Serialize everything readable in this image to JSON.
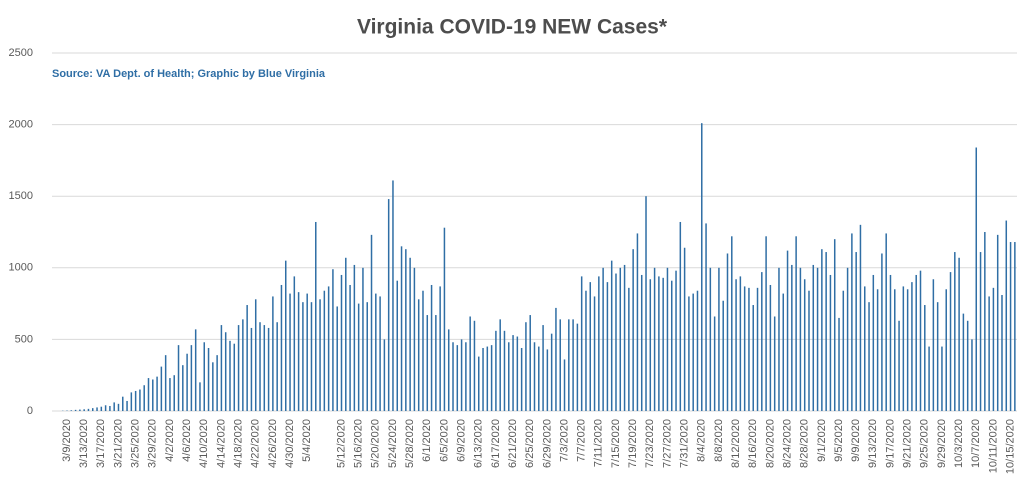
{
  "chart_data": {
    "type": "bar",
    "title": "Virginia COVID-19 NEW Cases*",
    "subtitle": "Source: VA Dept. of Health; Graphic by Blue Virginia",
    "color": "#2f6ea5",
    "grid": true,
    "ylim": [
      0,
      2500
    ],
    "yticks": [
      0,
      500,
      1000,
      1500,
      2000,
      2500
    ],
    "categories": [
      null,
      null,
      null,
      "3/9/2020",
      null,
      null,
      null,
      "3/13/2020",
      null,
      null,
      null,
      "3/17/2020",
      null,
      null,
      null,
      "3/21/2020",
      null,
      null,
      null,
      "3/25/2020",
      null,
      null,
      null,
      "3/29/2020",
      null,
      null,
      null,
      "4/2/2020",
      null,
      null,
      null,
      "4/6/2020",
      null,
      null,
      null,
      "4/10/2020",
      null,
      null,
      null,
      "4/14/2020",
      null,
      null,
      null,
      "4/18/2020",
      null,
      null,
      null,
      "4/22/2020",
      null,
      null,
      null,
      "4/26/2020",
      null,
      null,
      null,
      "4/30/2020",
      null,
      null,
      null,
      "5/4/2020",
      null,
      null,
      null,
      null,
      null,
      null,
      null,
      "5/12/2020",
      null,
      null,
      null,
      "5/16/2020",
      null,
      null,
      null,
      "5/20/2020",
      null,
      null,
      null,
      "5/24/2020",
      null,
      null,
      null,
      "5/28/2020",
      null,
      null,
      null,
      "6/1/2020",
      null,
      null,
      null,
      "6/5/2020",
      null,
      null,
      null,
      "6/9/2020",
      null,
      null,
      null,
      "6/13/2020",
      null,
      null,
      null,
      "6/17/2020",
      null,
      null,
      null,
      "6/21/2020",
      null,
      null,
      null,
      "6/25/2020",
      null,
      null,
      null,
      "6/29/2020",
      null,
      null,
      null,
      "7/3/2020",
      null,
      null,
      null,
      "7/7/2020",
      null,
      null,
      null,
      "7/11/2020",
      null,
      null,
      null,
      "7/15/2020",
      null,
      null,
      null,
      "7/19/2020",
      null,
      null,
      null,
      "7/23/2020",
      null,
      null,
      null,
      "7/27/2020",
      null,
      null,
      null,
      "7/31/2020",
      null,
      null,
      null,
      "8/4/2020",
      null,
      null,
      null,
      "8/8/2020",
      null,
      null,
      null,
      "8/12/2020",
      null,
      null,
      null,
      "8/16/2020",
      null,
      null,
      null,
      "8/20/2020",
      null,
      null,
      null,
      "8/24/2020",
      null,
      null,
      null,
      "8/28/2020",
      null,
      null,
      null,
      "9/1/2020",
      null,
      null,
      null,
      "9/5/2020",
      null,
      null,
      null,
      "9/9/2020",
      null,
      null,
      null,
      "9/13/2020",
      null,
      null,
      null,
      "9/17/2020",
      null,
      null,
      null,
      "9/21/2020",
      null,
      null,
      null,
      "9/25/2020",
      null,
      null,
      null,
      "9/29/2020",
      null,
      null,
      null,
      "10/3/2020",
      null,
      null,
      null,
      "10/7/2020",
      null,
      null,
      null,
      "10/11/2020",
      null,
      null,
      null,
      "10/15/2020",
      null
    ],
    "values": [
      0,
      0,
      2,
      3,
      5,
      8,
      10,
      12,
      15,
      20,
      25,
      30,
      40,
      35,
      60,
      50,
      100,
      70,
      130,
      140,
      150,
      180,
      230,
      220,
      240,
      310,
      390,
      230,
      250,
      460,
      320,
      400,
      460,
      570,
      200,
      480,
      440,
      340,
      390,
      600,
      550,
      490,
      470,
      600,
      640,
      740,
      580,
      780,
      620,
      600,
      580,
      800,
      620,
      880,
      1050,
      820,
      940,
      830,
      760,
      820,
      760,
      1320,
      780,
      840,
      870,
      990,
      730,
      950,
      1070,
      880,
      1020,
      750,
      1000,
      760,
      1230,
      820,
      800,
      500,
      1480,
      1610,
      910,
      1150,
      1130,
      1070,
      1000,
      780,
      840,
      670,
      880,
      670,
      870,
      1280,
      570,
      480,
      460,
      500,
      480,
      660,
      630,
      380,
      440,
      450,
      460,
      560,
      640,
      560,
      480,
      530,
      520,
      440,
      620,
      670,
      480,
      450,
      600,
      430,
      540,
      720,
      640,
      360,
      640,
      640,
      610,
      940,
      840,
      900,
      800,
      940,
      1000,
      900,
      1050,
      960,
      1000,
      1020,
      860,
      1130,
      1240,
      950,
      1500,
      920,
      1000,
      940,
      930,
      1000,
      910,
      980,
      1320,
      1140,
      800,
      820,
      840,
      2010,
      1310,
      1000,
      660,
      1000,
      770,
      1100,
      1220,
      920,
      940,
      870,
      860,
      740,
      860,
      970,
      1220,
      880,
      660,
      1000,
      820,
      1120,
      1020,
      1220,
      1000,
      920,
      840,
      1020,
      1000,
      1130,
      1110,
      950,
      1200,
      650,
      840,
      1000,
      1240,
      1110,
      1300,
      870,
      760,
      950,
      850,
      1100,
      1240,
      950,
      850,
      630,
      870,
      850,
      900,
      950,
      980,
      740,
      450,
      920,
      760,
      450,
      850,
      970,
      1110,
      1070,
      680,
      630,
      500,
      1840,
      1110,
      1250,
      800,
      860,
      1230,
      810,
      1330,
      1180,
      1180
    ]
  }
}
